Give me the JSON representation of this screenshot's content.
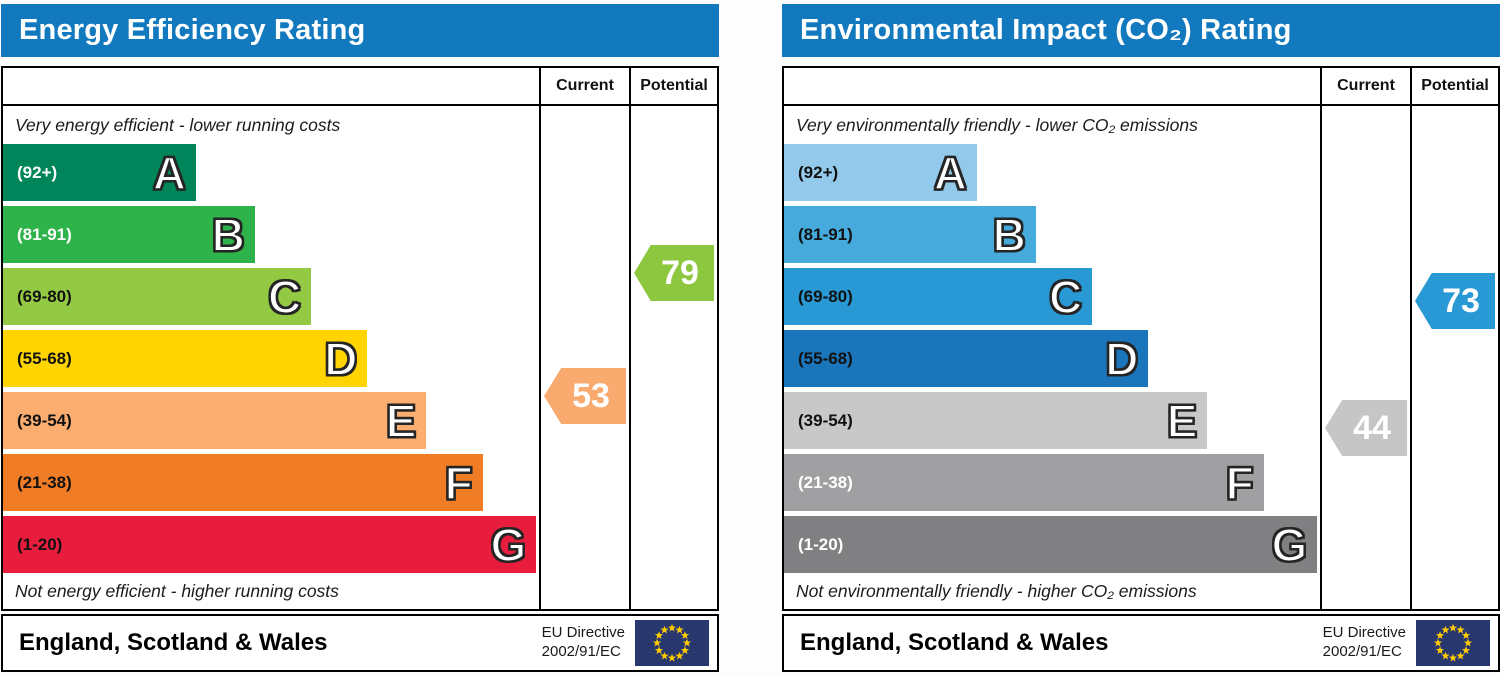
{
  "colors": {
    "header_bg": "#1279bf",
    "header_text": "#ffffff",
    "border": "#000000",
    "flag_bg": "#28376e",
    "flag_star": "#ffcc00"
  },
  "panels": [
    {
      "title": "Energy Efficiency Rating",
      "columns": {
        "current": "Current",
        "potential": "Potential"
      },
      "top_caption": "Very energy efficient - lower running costs",
      "bottom_caption": "Not energy efficient - higher running costs",
      "bands": [
        {
          "letter": "A",
          "range": "(92+)",
          "range_min": 92,
          "range_max": 100,
          "color": "#00855a",
          "text_color": "#ffffff",
          "width_pct": 36
        },
        {
          "letter": "B",
          "range": "(81-91)",
          "range_min": 81,
          "range_max": 91,
          "color": "#2eb24a",
          "text_color": "#ffffff",
          "width_pct": 47
        },
        {
          "letter": "C",
          "range": "(69-80)",
          "range_min": 69,
          "range_max": 80,
          "color": "#94ca43",
          "text_color": "#111111",
          "width_pct": 57.5
        },
        {
          "letter": "D",
          "range": "(55-68)",
          "range_min": 55,
          "range_max": 68,
          "color": "#ffd400",
          "text_color": "#111111",
          "width_pct": 68
        },
        {
          "letter": "E",
          "range": "(39-54)",
          "range_min": 39,
          "range_max": 54,
          "color": "#fbae6f",
          "text_color": "#111111",
          "width_pct": 79
        },
        {
          "letter": "F",
          "range": "(21-38)",
          "range_min": 21,
          "range_max": 38,
          "color": "#f07d26",
          "text_color": "#111111",
          "width_pct": 89.5
        },
        {
          "letter": "G",
          "range": "(1-20)",
          "range_min": 1,
          "range_max": 20,
          "color": "#e81c3d",
          "text_color": "#111111",
          "width_pct": 99.5
        }
      ],
      "current": {
        "value": 53,
        "band": "E",
        "color": "#f9ab6f",
        "text_color": "#ffffff"
      },
      "potential": {
        "value": 79,
        "band": "C",
        "color": "#8dc63f",
        "text_color": "#ffffff"
      },
      "footer": {
        "region": "England, Scotland & Wales",
        "directive_line1": "EU Directive",
        "directive_line2": "2002/91/EC"
      }
    },
    {
      "title": "Environmental Impact (CO₂) Rating",
      "columns": {
        "current": "Current",
        "potential": "Potential"
      },
      "top_caption": "Very environmentally friendly - lower CO₂ emissions",
      "bottom_caption": "Not environmentally friendly - higher CO₂ emissions",
      "bands": [
        {
          "letter": "A",
          "range": "(92+)",
          "range_min": 92,
          "range_max": 100,
          "color": "#93caeb",
          "text_color": "#111111",
          "width_pct": 36
        },
        {
          "letter": "B",
          "range": "(81-91)",
          "range_min": 81,
          "range_max": 91,
          "color": "#46aadc",
          "text_color": "#111111",
          "width_pct": 47
        },
        {
          "letter": "C",
          "range": "(69-80)",
          "range_min": 69,
          "range_max": 80,
          "color": "#2899d4",
          "text_color": "#111111",
          "width_pct": 57.5
        },
        {
          "letter": "D",
          "range": "(55-68)",
          "range_min": 55,
          "range_max": 68,
          "color": "#1b75bb",
          "text_color": "#111111",
          "width_pct": 68
        },
        {
          "letter": "E",
          "range": "(39-54)",
          "range_min": 39,
          "range_max": 54,
          "color": "#c8c8c9",
          "text_color": "#111111",
          "width_pct": 79
        },
        {
          "letter": "F",
          "range": "(21-38)",
          "range_min": 21,
          "range_max": 38,
          "color": "#a0a0a3",
          "text_color": "#ffffff",
          "width_pct": 89.5
        },
        {
          "letter": "G",
          "range": "(1-20)",
          "range_min": 1,
          "range_max": 20,
          "color": "#808083",
          "text_color": "#ffffff",
          "width_pct": 99.5
        }
      ],
      "current": {
        "value": 44,
        "band": "E",
        "color": "#c6c6c6",
        "text_color": "#ffffff"
      },
      "potential": {
        "value": 73,
        "band": "C",
        "color": "#2899d4",
        "text_color": "#ffffff"
      },
      "footer": {
        "region": "England, Scotland & Wales",
        "directive_line1": "EU Directive",
        "directive_line2": "2002/91/EC"
      }
    }
  ],
  "chart_data": [
    {
      "type": "bar",
      "title": "Energy Efficiency Rating",
      "categories": [
        "A",
        "B",
        "C",
        "D",
        "E",
        "F",
        "G"
      ],
      "band_ranges": [
        "92+",
        "81-91",
        "69-80",
        "55-68",
        "39-54",
        "21-38",
        "1-20"
      ],
      "band_relative_widths_pct": [
        36,
        47,
        57.5,
        68,
        79,
        89.5,
        99.5
      ],
      "band_colors": [
        "#00855a",
        "#2eb24a",
        "#94ca43",
        "#ffd400",
        "#fbae6f",
        "#f07d26",
        "#e81c3d"
      ],
      "current": {
        "value": 53,
        "band": "E"
      },
      "potential": {
        "value": 79,
        "band": "C"
      },
      "top_label": "Very energy efficient - lower running costs",
      "bottom_label": "Not energy efficient - higher running costs",
      "region": "England, Scotland & Wales",
      "directive": "EU Directive 2002/91/EC",
      "legend_position": "none",
      "grid": false
    },
    {
      "type": "bar",
      "title": "Environmental Impact (CO₂) Rating",
      "categories": [
        "A",
        "B",
        "C",
        "D",
        "E",
        "F",
        "G"
      ],
      "band_ranges": [
        "92+",
        "81-91",
        "69-80",
        "55-68",
        "39-54",
        "21-38",
        "1-20"
      ],
      "band_relative_widths_pct": [
        36,
        47,
        57.5,
        68,
        79,
        89.5,
        99.5
      ],
      "band_colors": [
        "#93caeb",
        "#46aadc",
        "#2899d4",
        "#1b75bb",
        "#c8c8c9",
        "#a0a0a3",
        "#808083"
      ],
      "current": {
        "value": 44,
        "band": "E"
      },
      "potential": {
        "value": 73,
        "band": "C"
      },
      "top_label": "Very environmentally friendly - lower CO₂ emissions",
      "bottom_label": "Not environmentally friendly - higher CO₂ emissions",
      "region": "England, Scotland & Wales",
      "directive": "EU Directive 2002/91/EC",
      "legend_position": "none",
      "grid": false
    }
  ]
}
